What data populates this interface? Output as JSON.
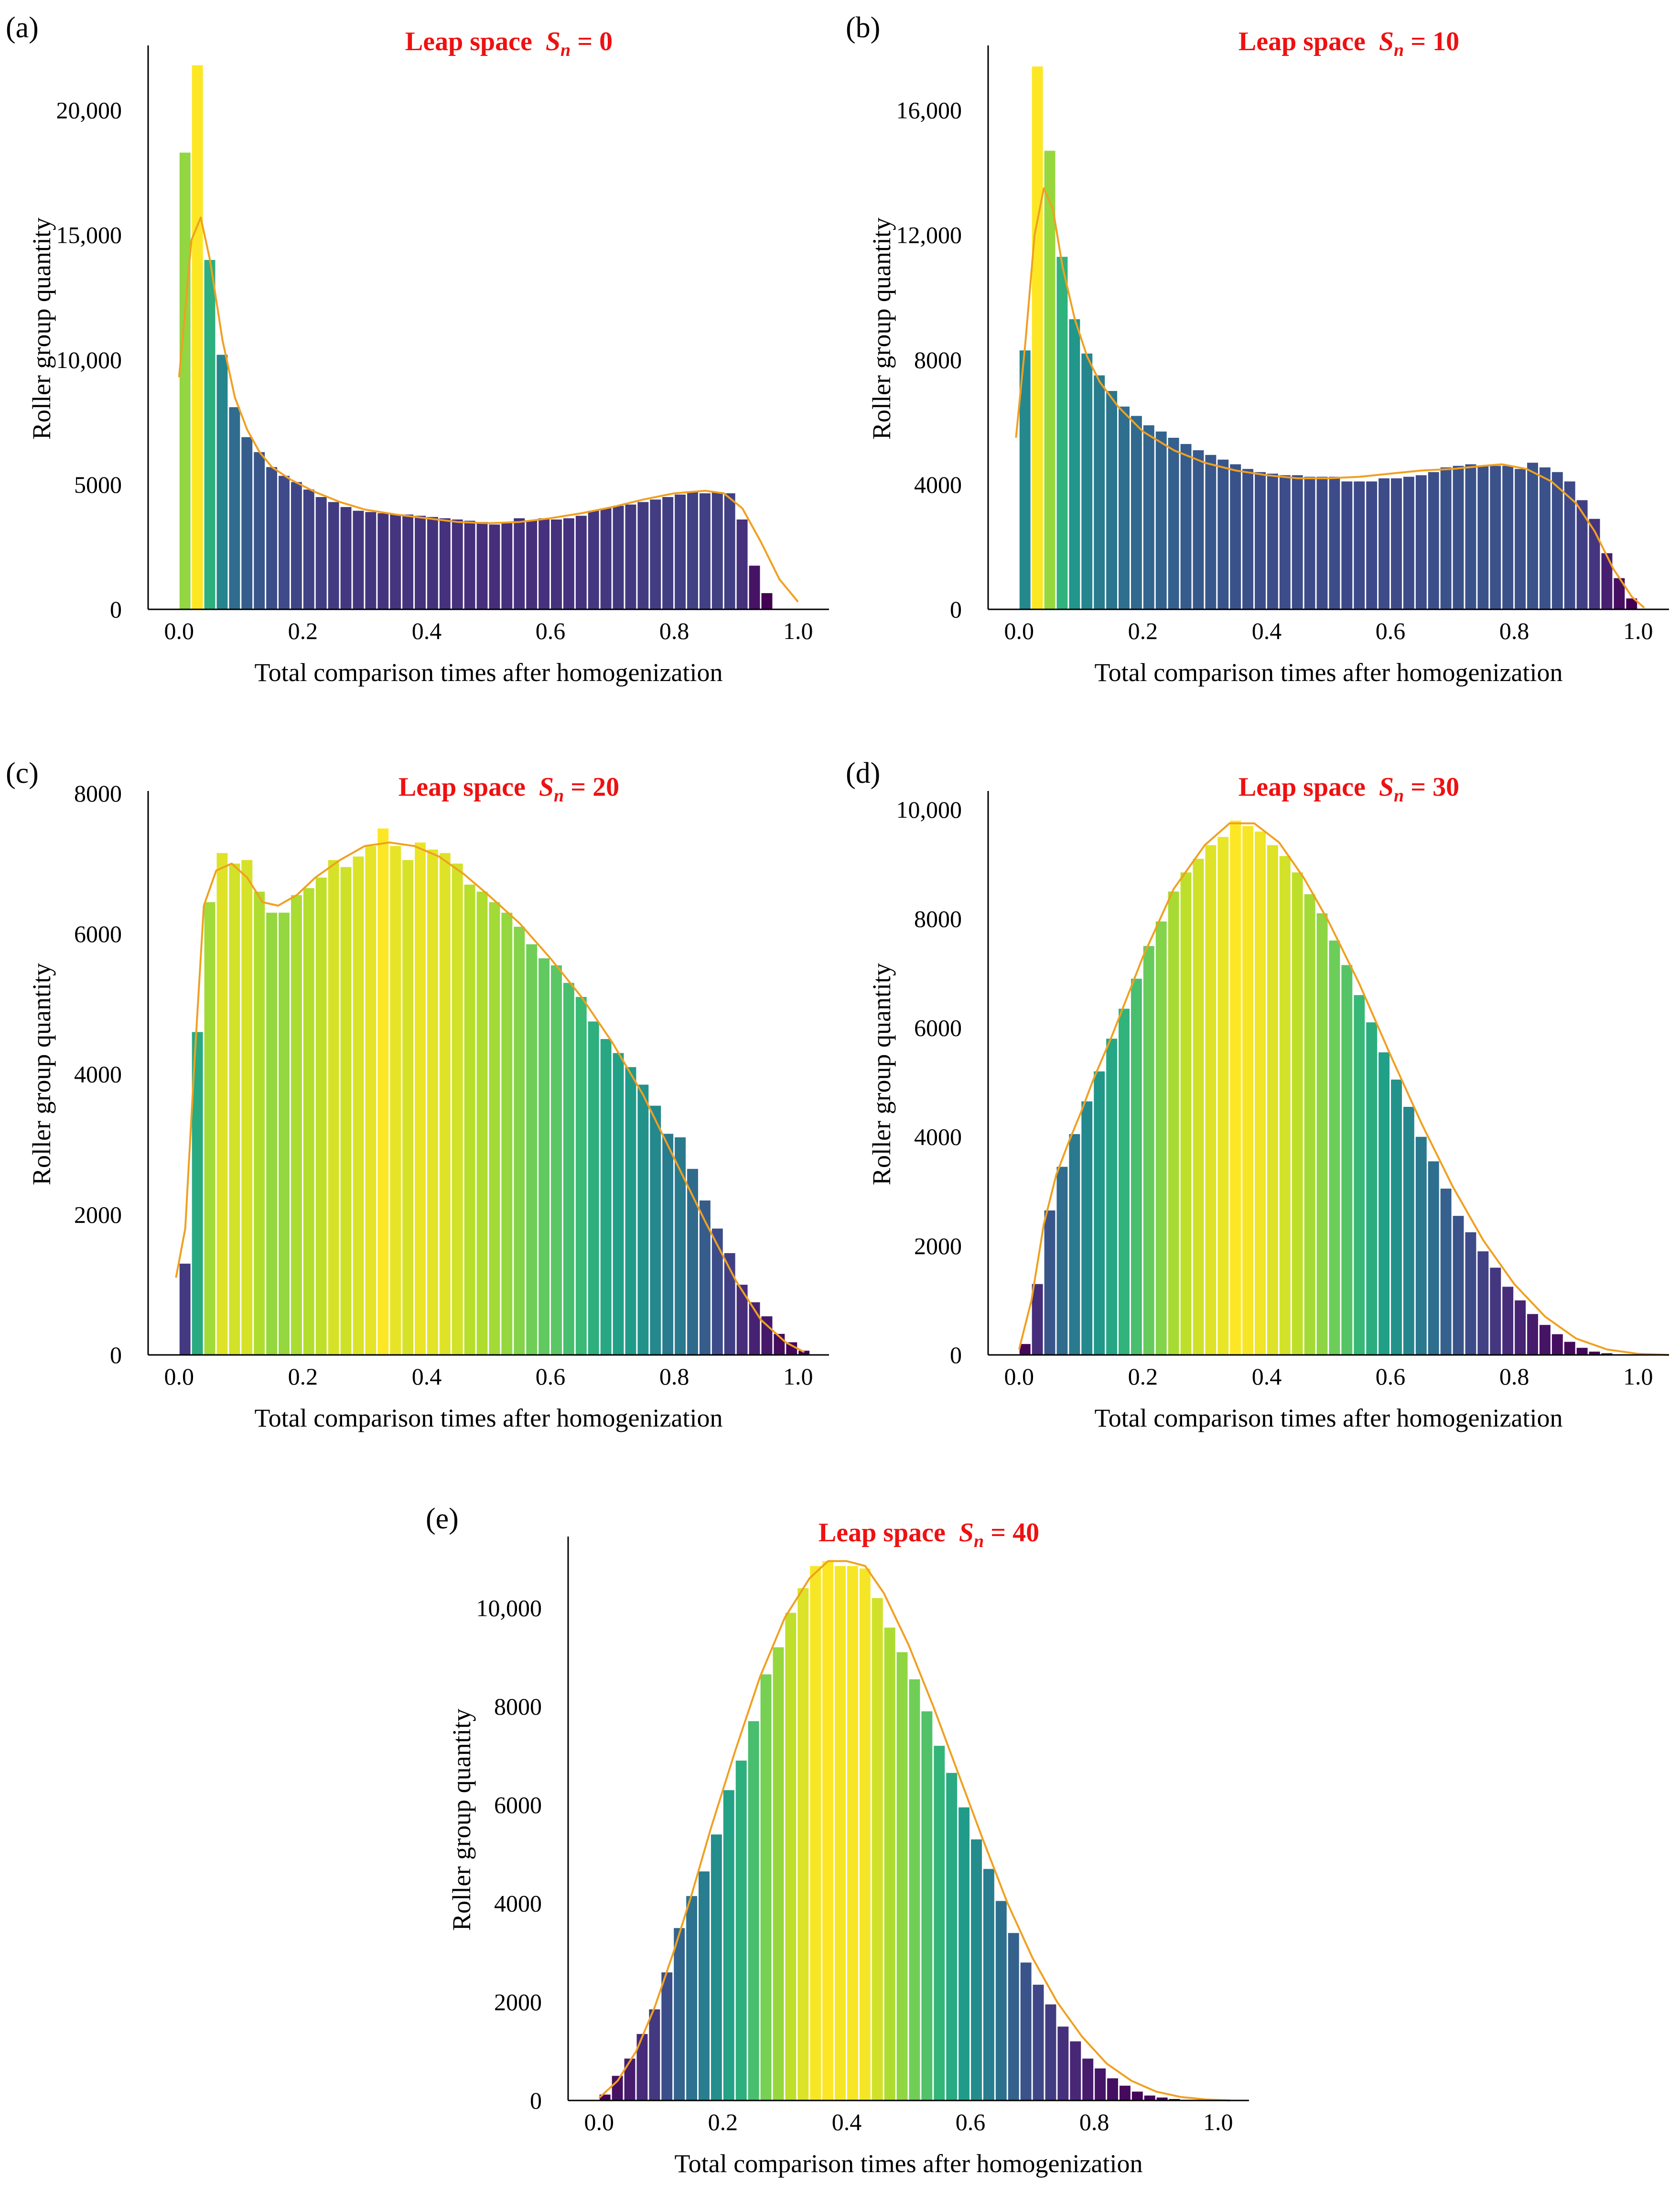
{
  "figure": {
    "colors": {
      "kde": "#f0a020",
      "title": "#ee1111",
      "axis": "#000000"
    }
  },
  "chart_data": [
    {
      "type": "bar",
      "panel_label": "(a)",
      "title_prefix": "Leap space",
      "title_symbol": "S",
      "title_subscript": "n",
      "title_value": "= 0",
      "xlabel": "Total comparison times after homogenization",
      "ylabel": "Roller group quantity",
      "xlim": [
        -0.05,
        1.05
      ],
      "ylim": [
        0,
        22500
      ],
      "x_ticks": [
        0.0,
        0.2,
        0.4,
        0.6,
        0.8,
        1.0
      ],
      "x_tick_labels": [
        "0.0",
        "0.2",
        "0.4",
        "0.6",
        "0.8",
        "1.0"
      ],
      "y_ticks": [
        0,
        5000,
        10000,
        15000,
        20000
      ],
      "y_tick_labels": [
        "0",
        "5000",
        "10,000",
        "15,000",
        "20,000"
      ],
      "bin_width": 0.02,
      "values": [
        18300,
        21800,
        14000,
        10200,
        8100,
        6900,
        6300,
        5700,
        5350,
        5100,
        4800,
        4500,
        4300,
        4100,
        3950,
        3900,
        3850,
        3800,
        3800,
        3750,
        3700,
        3650,
        3600,
        3550,
        3500,
        3400,
        3500,
        3650,
        3550,
        3650,
        3600,
        3650,
        3750,
        3950,
        4050,
        4150,
        4200,
        4300,
        4400,
        4500,
        4600,
        4700,
        4650,
        4700,
        4650,
        3600,
        1750,
        650
      ],
      "kde": [
        [
          0.0,
          9300
        ],
        [
          0.01,
          12000
        ],
        [
          0.02,
          14800
        ],
        [
          0.035,
          15700
        ],
        [
          0.05,
          14000
        ],
        [
          0.07,
          10800
        ],
        [
          0.09,
          8500
        ],
        [
          0.11,
          7200
        ],
        [
          0.13,
          6300
        ],
        [
          0.15,
          5700
        ],
        [
          0.18,
          5200
        ],
        [
          0.22,
          4700
        ],
        [
          0.26,
          4300
        ],
        [
          0.3,
          4000
        ],
        [
          0.35,
          3800
        ],
        [
          0.4,
          3650
        ],
        [
          0.45,
          3500
        ],
        [
          0.5,
          3450
        ],
        [
          0.55,
          3500
        ],
        [
          0.6,
          3650
        ],
        [
          0.65,
          3850
        ],
        [
          0.7,
          4100
        ],
        [
          0.75,
          4400
        ],
        [
          0.8,
          4650
        ],
        [
          0.85,
          4750
        ],
        [
          0.88,
          4650
        ],
        [
          0.91,
          4050
        ],
        [
          0.94,
          2700
        ],
        [
          0.97,
          1200
        ],
        [
          1.0,
          300
        ]
      ]
    },
    {
      "type": "bar",
      "panel_label": "(b)",
      "title_prefix": "Leap space",
      "title_symbol": "S",
      "title_subscript": "n",
      "title_value": "= 10",
      "xlabel": "Total comparison times after homogenization",
      "ylabel": "Roller group quantity",
      "xlim": [
        -0.05,
        1.05
      ],
      "ylim": [
        0,
        18000
      ],
      "x_ticks": [
        0.0,
        0.2,
        0.4,
        0.6,
        0.8,
        1.0
      ],
      "x_tick_labels": [
        "0.0",
        "0.2",
        "0.4",
        "0.6",
        "0.8",
        "1.0"
      ],
      "y_ticks": [
        0,
        4000,
        8000,
        12000,
        16000
      ],
      "y_tick_labels": [
        "0",
        "4000",
        "8000",
        "12,000",
        "16,000"
      ],
      "bin_width": 0.02,
      "values": [
        8300,
        17400,
        14700,
        11300,
        9300,
        8200,
        7500,
        7000,
        6500,
        6200,
        5900,
        5700,
        5500,
        5300,
        5100,
        4950,
        4800,
        4650,
        4500,
        4400,
        4350,
        4300,
        4300,
        4250,
        4250,
        4250,
        4100,
        4100,
        4100,
        4200,
        4200,
        4250,
        4300,
        4400,
        4550,
        4600,
        4650,
        4600,
        4600,
        4600,
        4500,
        4700,
        4550,
        4400,
        4100,
        3500,
        2900,
        1800,
        1000,
        350
      ],
      "kde": [
        [
          -0.005,
          5500
        ],
        [
          0.01,
          8500
        ],
        [
          0.025,
          12000
        ],
        [
          0.04,
          13500
        ],
        [
          0.055,
          12800
        ],
        [
          0.07,
          11000
        ],
        [
          0.09,
          9300
        ],
        [
          0.11,
          8100
        ],
        [
          0.13,
          7300
        ],
        [
          0.16,
          6500
        ],
        [
          0.2,
          5700
        ],
        [
          0.25,
          5100
        ],
        [
          0.3,
          4700
        ],
        [
          0.35,
          4450
        ],
        [
          0.4,
          4300
        ],
        [
          0.45,
          4200
        ],
        [
          0.5,
          4200
        ],
        [
          0.55,
          4250
        ],
        [
          0.6,
          4350
        ],
        [
          0.65,
          4450
        ],
        [
          0.7,
          4500
        ],
        [
          0.75,
          4600
        ],
        [
          0.78,
          4650
        ],
        [
          0.82,
          4500
        ],
        [
          0.86,
          4100
        ],
        [
          0.9,
          3400
        ],
        [
          0.93,
          2500
        ],
        [
          0.96,
          1300
        ],
        [
          0.99,
          400
        ],
        [
          1.01,
          50
        ]
      ]
    },
    {
      "type": "bar",
      "panel_label": "(c)",
      "title_prefix": "Leap space",
      "title_symbol": "S",
      "title_subscript": "n",
      "title_value": "= 20",
      "xlabel": "Total comparison times after homogenization",
      "ylabel": "Roller group quantity",
      "xlim": [
        -0.05,
        1.05
      ],
      "ylim": [
        0,
        8000
      ],
      "x_ticks": [
        0.0,
        0.2,
        0.4,
        0.6,
        0.8,
        1.0
      ],
      "x_tick_labels": [
        "0.0",
        "0.2",
        "0.4",
        "0.6",
        "0.8",
        "1.0"
      ],
      "y_ticks": [
        0,
        2000,
        4000,
        6000,
        8000
      ],
      "y_tick_labels": [
        "0",
        "2000",
        "4000",
        "6000",
        "8000"
      ],
      "bin_width": 0.02,
      "values": [
        1300,
        4600,
        6450,
        7150,
        7000,
        7050,
        6600,
        6300,
        6300,
        6550,
        6650,
        6800,
        7050,
        6950,
        7100,
        7250,
        7500,
        7250,
        7050,
        7300,
        7200,
        7150,
        7000,
        6700,
        6600,
        6450,
        6300,
        6100,
        5850,
        5650,
        5550,
        5300,
        5100,
        4750,
        4500,
        4300,
        4100,
        3850,
        3550,
        3150,
        3100,
        2650,
        2200,
        1800,
        1450,
        1000,
        750,
        550,
        300,
        180,
        60
      ],
      "kde": [
        [
          -0.005,
          1100
        ],
        [
          0.01,
          1800
        ],
        [
          0.025,
          4200
        ],
        [
          0.04,
          6400
        ],
        [
          0.06,
          6900
        ],
        [
          0.085,
          7000
        ],
        [
          0.11,
          6800
        ],
        [
          0.135,
          6450
        ],
        [
          0.16,
          6400
        ],
        [
          0.19,
          6550
        ],
        [
          0.22,
          6800
        ],
        [
          0.26,
          7050
        ],
        [
          0.3,
          7250
        ],
        [
          0.34,
          7300
        ],
        [
          0.38,
          7250
        ],
        [
          0.42,
          7100
        ],
        [
          0.46,
          6850
        ],
        [
          0.5,
          6550
        ],
        [
          0.55,
          6150
        ],
        [
          0.6,
          5650
        ],
        [
          0.65,
          5100
        ],
        [
          0.7,
          4450
        ],
        [
          0.75,
          3700
        ],
        [
          0.8,
          2800
        ],
        [
          0.85,
          1900
        ],
        [
          0.9,
          1050
        ],
        [
          0.94,
          500
        ],
        [
          0.98,
          180
        ],
        [
          1.01,
          40
        ]
      ]
    },
    {
      "type": "bar",
      "panel_label": "(d)",
      "title_prefix": "Leap space",
      "title_symbol": "S",
      "title_subscript": "n",
      "title_value": "= 30",
      "xlabel": "Total comparison times after homogenization",
      "ylabel": "Roller group quantity",
      "xlim": [
        -0.05,
        1.05
      ],
      "ylim": [
        0,
        10300
      ],
      "x_ticks": [
        0.0,
        0.2,
        0.4,
        0.6,
        0.8,
        1.0
      ],
      "x_tick_labels": [
        "0.0",
        "0.2",
        "0.4",
        "0.6",
        "0.8",
        "1.0"
      ],
      "y_ticks": [
        0,
        2000,
        4000,
        6000,
        8000,
        10000
      ],
      "y_tick_labels": [
        "0",
        "2000",
        "4000",
        "6000",
        "8000",
        "10,000"
      ],
      "bin_width": 0.02,
      "values": [
        200,
        1300,
        2650,
        3450,
        4050,
        4650,
        5200,
        5800,
        6350,
        6900,
        7500,
        7950,
        8500,
        8850,
        9100,
        9350,
        9500,
        9800,
        9700,
        9600,
        9350,
        9150,
        8850,
        8450,
        8100,
        7600,
        7150,
        6600,
        6100,
        5550,
        5050,
        4550,
        4000,
        3550,
        3050,
        2550,
        2250,
        1900,
        1600,
        1250,
        1000,
        750,
        550,
        380,
        240,
        130,
        60,
        30
      ],
      "kde": [
        [
          0.0,
          100
        ],
        [
          0.02,
          1000
        ],
        [
          0.04,
          2400
        ],
        [
          0.06,
          3300
        ],
        [
          0.08,
          3900
        ],
        [
          0.1,
          4450
        ],
        [
          0.12,
          5050
        ],
        [
          0.15,
          5850
        ],
        [
          0.2,
          7300
        ],
        [
          0.25,
          8550
        ],
        [
          0.3,
          9350
        ],
        [
          0.34,
          9750
        ],
        [
          0.38,
          9750
        ],
        [
          0.42,
          9400
        ],
        [
          0.46,
          8750
        ],
        [
          0.5,
          7950
        ],
        [
          0.55,
          6800
        ],
        [
          0.6,
          5500
        ],
        [
          0.65,
          4250
        ],
        [
          0.7,
          3100
        ],
        [
          0.75,
          2100
        ],
        [
          0.8,
          1300
        ],
        [
          0.85,
          700
        ],
        [
          0.9,
          300
        ],
        [
          0.95,
          100
        ],
        [
          1.0,
          20
        ],
        [
          1.05,
          0
        ]
      ]
    },
    {
      "type": "bar",
      "panel_label": "(e)",
      "title_prefix": "Leap space",
      "title_symbol": "S",
      "title_subscript": "n",
      "title_value": "= 40",
      "xlabel": "Total comparison times after homogenization",
      "ylabel": "Roller group quantity",
      "xlim": [
        -0.05,
        1.05
      ],
      "ylim": [
        0,
        11400
      ],
      "x_ticks": [
        0.0,
        0.2,
        0.4,
        0.6,
        0.8,
        1.0
      ],
      "x_tick_labels": [
        "0.0",
        "0.2",
        "0.4",
        "0.6",
        "0.8",
        "1.0"
      ],
      "y_ticks": [
        0,
        2000,
        4000,
        6000,
        8000,
        10000
      ],
      "y_tick_labels": [
        "0",
        "2000",
        "4000",
        "6000",
        "8000",
        "10,000"
      ],
      "bin_width": 0.02,
      "values": [
        120,
        500,
        850,
        1350,
        1850,
        2600,
        3500,
        4150,
        4650,
        5400,
        6300,
        6900,
        7700,
        8650,
        9200,
        9900,
        10400,
        10850,
        10950,
        10850,
        10850,
        10800,
        10200,
        9600,
        9100,
        8550,
        7900,
        7200,
        6650,
        5950,
        5300,
        4700,
        4050,
        3400,
        2800,
        2350,
        1950,
        1500,
        1200,
        850,
        650,
        450,
        300,
        180,
        100,
        60,
        30,
        15
      ],
      "kde": [
        [
          0.0,
          50
        ],
        [
          0.03,
          400
        ],
        [
          0.06,
          1000
        ],
        [
          0.09,
          1900
        ],
        [
          0.12,
          3000
        ],
        [
          0.15,
          4200
        ],
        [
          0.18,
          5500
        ],
        [
          0.22,
          7100
        ],
        [
          0.26,
          8600
        ],
        [
          0.3,
          9800
        ],
        [
          0.34,
          10600
        ],
        [
          0.37,
          10950
        ],
        [
          0.4,
          10950
        ],
        [
          0.43,
          10850
        ],
        [
          0.46,
          10300
        ],
        [
          0.5,
          9250
        ],
        [
          0.54,
          8000
        ],
        [
          0.58,
          6650
        ],
        [
          0.62,
          5300
        ],
        [
          0.66,
          4000
        ],
        [
          0.7,
          2900
        ],
        [
          0.74,
          2000
        ],
        [
          0.78,
          1300
        ],
        [
          0.82,
          750
        ],
        [
          0.86,
          400
        ],
        [
          0.9,
          180
        ],
        [
          0.94,
          70
        ],
        [
          0.98,
          20
        ],
        [
          1.02,
          0
        ]
      ]
    }
  ]
}
